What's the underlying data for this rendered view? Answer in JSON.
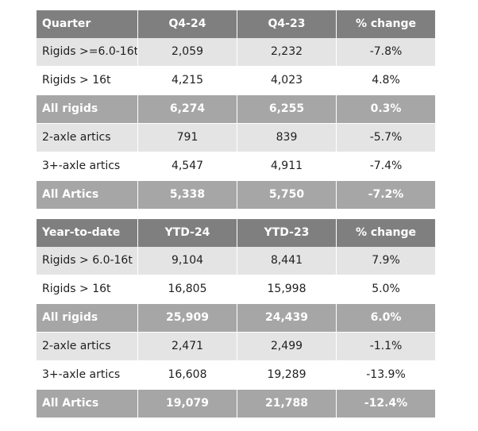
{
  "quarter_table": {
    "headers": [
      "Quarter",
      "Q4-24",
      "Q4-23",
      "% change"
    ],
    "rows": [
      {
        "label": "Rigids >=6.0-16t",
        "a": "2,059",
        "b": "2,232",
        "change": "-7.8%"
      },
      {
        "label": "Rigids > 16t",
        "a": "4,215",
        "b": "4,023",
        "change": "4.8%"
      },
      {
        "label": "All rigids",
        "a": "6,274",
        "b": "6,255",
        "change": "0.3%"
      },
      {
        "label": "2-axle artics",
        "a": "791",
        "b": "839",
        "change": "-5.7%"
      },
      {
        "label": "3+-axle artics",
        "a": "4,547",
        "b": "4,911",
        "change": "-7.4%"
      },
      {
        "label": "All Artics",
        "a": "5,338",
        "b": "5,750",
        "change": "-7.2%"
      }
    ]
  },
  "ytd_table": {
    "headers": [
      "Year-to-date",
      "YTD-24",
      "YTD-23",
      "% change"
    ],
    "rows": [
      {
        "label": "Rigids > 6.0-16t",
        "a": "9,104",
        "b": "8,441",
        "change": "7.9%"
      },
      {
        "label": "Rigids > 16t",
        "a": "16,805",
        "b": "15,998",
        "change": "5.0%"
      },
      {
        "label": "All rigids",
        "a": "25,909",
        "b": "24,439",
        "change": "6.0%"
      },
      {
        "label": "2-axle artics",
        "a": "2,471",
        "b": "2,499",
        "change": "-1.1%"
      },
      {
        "label": "3+-axle artics",
        "a": "16,608",
        "b": "19,289",
        "change": "-13.9%"
      },
      {
        "label": "All Artics",
        "a": "19,079",
        "b": "21,788",
        "change": "-12.4%"
      }
    ]
  },
  "colors": {
    "header_bg": "#7f7f7f",
    "total_row_bg": "#a6a6a6",
    "light_row_bg": "#e4e4e4",
    "white_row_bg": "#ffffff"
  }
}
